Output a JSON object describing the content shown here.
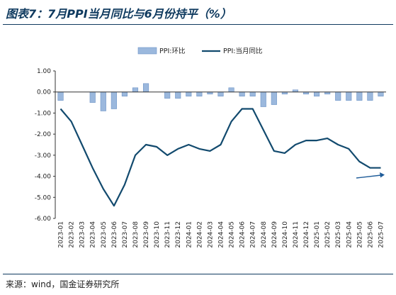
{
  "title": "图表7：7月PPI当月同比与6月份持平（%）",
  "source": "来源：wind，国金证券研究所",
  "colors": {
    "bar": "#9bb8dd",
    "bar_edge": "#6d93c6",
    "line": "#124a6e",
    "arrow": "#1f5c99",
    "rule": "#0f3a5f"
  },
  "chart_data": {
    "type": "bar+line",
    "legend": [
      "PPI:环比",
      "PPI:当月同比"
    ],
    "legend_position": "top-right",
    "ylim": [
      -6,
      1
    ],
    "yticks": [
      "1.00",
      "0.00",
      "-1.00",
      "-2.00",
      "-3.00",
      "-4.00",
      "-5.00",
      "-6.00"
    ],
    "categories": [
      "2023-01",
      "2023-02",
      "2023-03",
      "2023-04",
      "2023-05",
      "2023-06",
      "2023-07",
      "2023-08",
      "2023-09",
      "2023-10",
      "2023-11",
      "2023-12",
      "2024-01",
      "2024-02",
      "2024-03",
      "2024-04",
      "2024-05",
      "2024-06",
      "2024-07",
      "2024-08",
      "2024-09",
      "2024-10",
      "2024-11",
      "2024-12",
      "2025-01",
      "2025-02",
      "2025-03",
      "2025-04",
      "2025-05",
      "2025-06",
      "2025-07"
    ],
    "series": [
      {
        "name": "PPI:环比",
        "type": "bar",
        "values": [
          -0.4,
          0.0,
          0.0,
          -0.5,
          -0.9,
          -0.8,
          -0.2,
          0.2,
          0.4,
          0.0,
          -0.3,
          -0.3,
          -0.2,
          -0.2,
          -0.1,
          -0.2,
          0.2,
          -0.2,
          -0.2,
          -0.7,
          -0.6,
          -0.1,
          0.1,
          -0.1,
          -0.2,
          -0.1,
          -0.4,
          -0.4,
          -0.4,
          -0.4,
          -0.2
        ]
      },
      {
        "name": "PPI:当月同比",
        "type": "line",
        "values": [
          -0.8,
          -1.4,
          -2.5,
          -3.6,
          -4.6,
          -5.4,
          -4.4,
          -3.0,
          -2.5,
          -2.6,
          -3.0,
          -2.7,
          -2.5,
          -2.7,
          -2.8,
          -2.5,
          -1.4,
          -0.8,
          -0.8,
          -1.8,
          -2.8,
          -2.9,
          -2.5,
          -2.3,
          -2.3,
          -2.2,
          -2.5,
          -2.7,
          -3.3,
          -3.6,
          -3.6
        ]
      }
    ]
  }
}
